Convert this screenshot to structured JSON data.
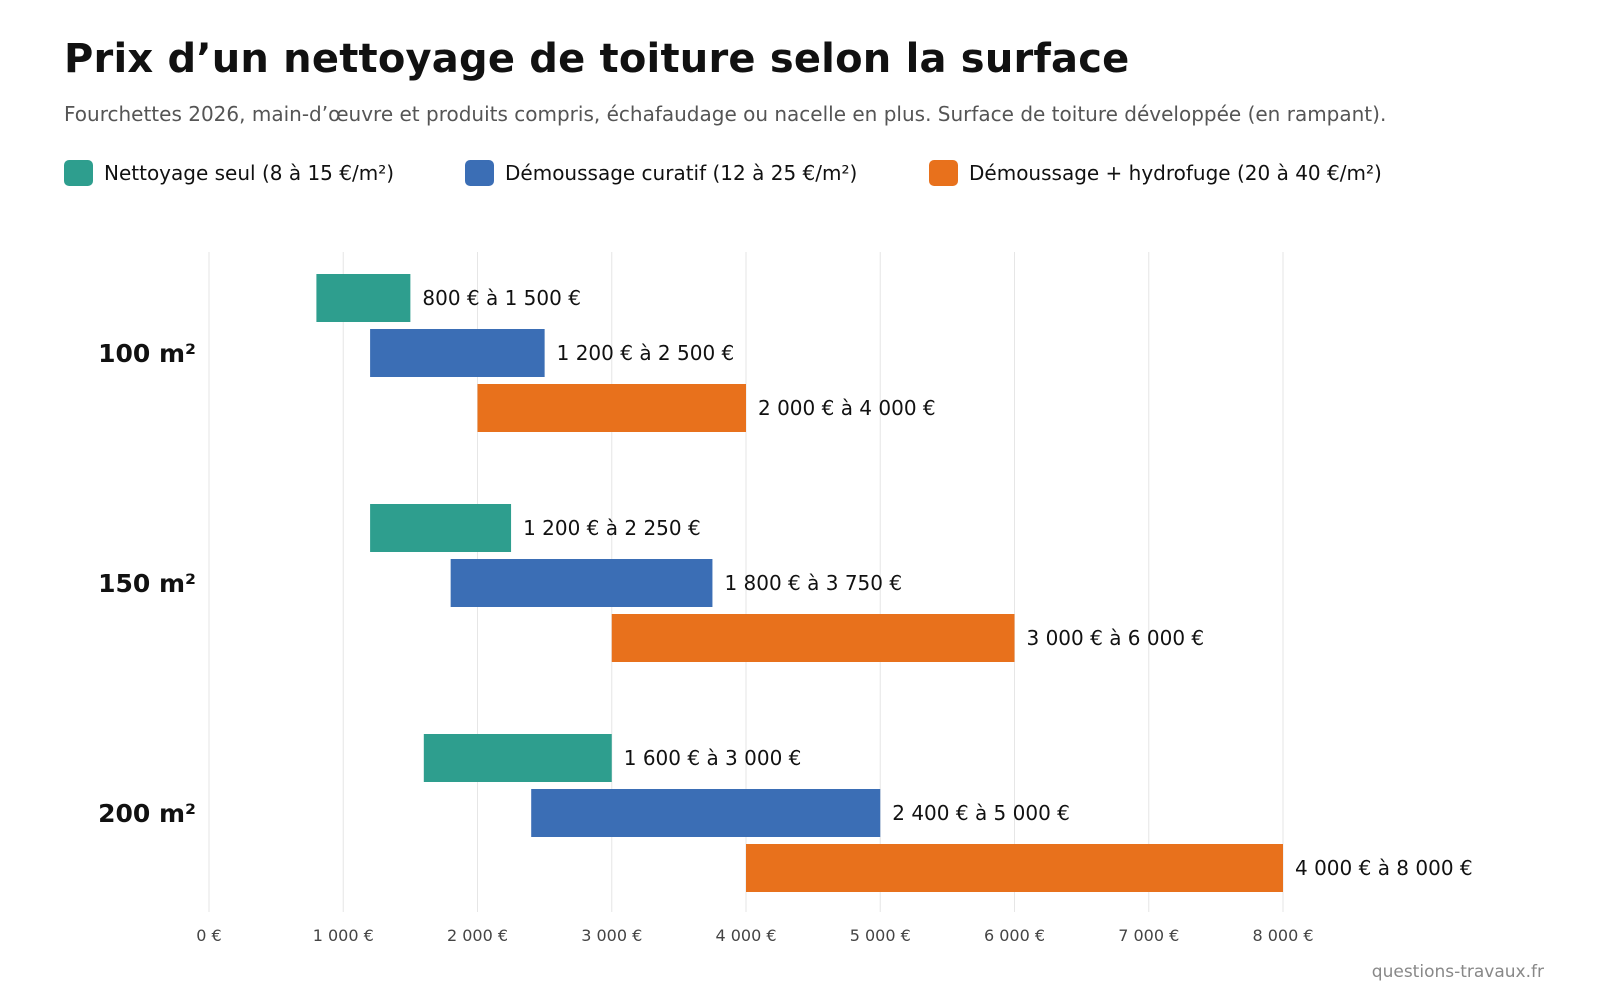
{
  "title": "Prix d’un nettoyage de toiture selon la surface",
  "subtitle": "Fourchettes 2026, main-d’œuvre et produits compris, échafaudage ou nacelle en plus. Surface de toiture développée (en rampant).",
  "source": "questions-travaux.fr",
  "chart_data": {
    "type": "bar",
    "orientation": "horizontal",
    "subtype": "floating-range",
    "title": "Prix d’un nettoyage de toiture selon la surface",
    "subtitle": "Fourchettes 2026, main-d’œuvre et produits compris, échafaudage ou nacelle en plus. Surface de toiture développée (en rampant).",
    "xlabel": "",
    "ylabel": "",
    "categories": [
      "100 m²",
      "150 m²",
      "200 m²"
    ],
    "xlim": [
      0,
      8000
    ],
    "xticks": [
      0,
      1000,
      2000,
      3000,
      4000,
      5000,
      6000,
      7000,
      8000
    ],
    "xtick_labels": [
      "0 €",
      "1 000 €",
      "2 000 €",
      "3 000 €",
      "4 000 €",
      "5 000 €",
      "6 000 €",
      "7 000 €",
      "8 000 €"
    ],
    "grid": "vertical",
    "legend_position": "top-left",
    "series": [
      {
        "name": "Nettoyage seul (8 à 15 €/m²)",
        "color": "#2e9e8e",
        "ranges": [
          [
            800,
            1500
          ],
          [
            1200,
            2250
          ],
          [
            1600,
            3000
          ]
        ],
        "labels": [
          "800 € à 1 500 €",
          "1 200 € à 2 250 €",
          "1 600 € à 3 000 €"
        ]
      },
      {
        "name": "Démoussage curatif (12 à 25 €/m²)",
        "color": "#3b6eb5",
        "ranges": [
          [
            1200,
            2500
          ],
          [
            1800,
            3750
          ],
          [
            2400,
            5000
          ]
        ],
        "labels": [
          "1 200 € à 2 500 €",
          "1 800 € à 3 750 €",
          "2 400 € à 5 000 €"
        ]
      },
      {
        "name": "Démoussage + hydrofuge (20 à 40 €/m²)",
        "color": "#e8711c",
        "ranges": [
          [
            2000,
            4000
          ],
          [
            3000,
            6000
          ],
          [
            4000,
            8000
          ]
        ],
        "labels": [
          "2 000 € à 4 000 €",
          "3 000 € à 6 000 €",
          "4 000 € à 8 000 €"
        ]
      }
    ]
  }
}
